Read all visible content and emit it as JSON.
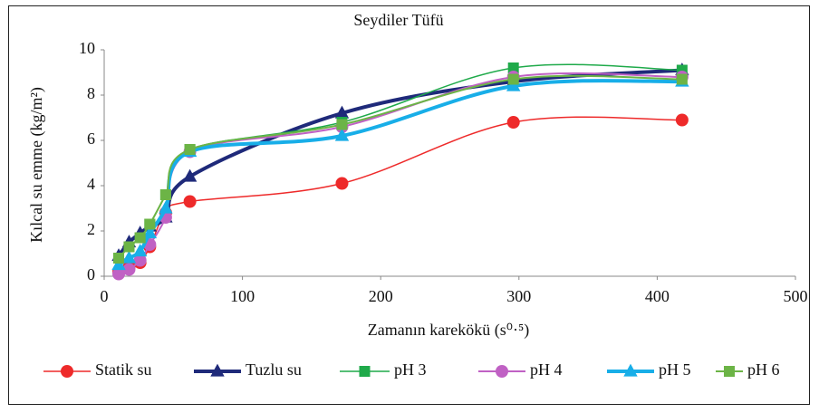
{
  "chart_data": {
    "type": "line",
    "title": "Seydiler Tüfü",
    "xlabel": "Zamanın karekökü (s⁰·⁵)",
    "ylabel": "Kılcal su emme (kg/m²)",
    "x": [
      10.5,
      18,
      26,
      33,
      44.5,
      62,
      172,
      296,
      418
    ],
    "xlim": [
      0,
      500
    ],
    "xticks": [
      0,
      100,
      200,
      300,
      400,
      500
    ],
    "ylim": [
      0,
      10
    ],
    "yticks": [
      0,
      2,
      4,
      6,
      8,
      10
    ],
    "grid": false,
    "legend": "bottom",
    "series": [
      {
        "name": "Statik su",
        "color": "#ee2a2a",
        "marker": "circle",
        "values": [
          0.2,
          0.4,
          0.6,
          1.3,
          2.8,
          3.3,
          4.1,
          6.8,
          6.9
        ]
      },
      {
        "name": "Tuzlu su",
        "color": "#1f2a7a",
        "marker": "triangle",
        "values": [
          0.9,
          1.5,
          1.9,
          2.2,
          2.6,
          4.4,
          7.2,
          8.6,
          9.1
        ]
      },
      {
        "name": "pH 3",
        "color": "#1faa4a",
        "marker": "square",
        "values": [
          0.8,
          1.3,
          1.7,
          2.3,
          3.6,
          5.6,
          6.8,
          9.2,
          9.1
        ]
      },
      {
        "name": "pH 4",
        "color": "#c061c4",
        "marker": "circle",
        "values": [
          0.1,
          0.3,
          0.7,
          1.4,
          2.6,
          5.5,
          6.6,
          8.8,
          8.8
        ]
      },
      {
        "name": "pH 5",
        "color": "#18aee8",
        "marker": "triangle",
        "values": [
          0.5,
          0.8,
          1.1,
          1.9,
          3.0,
          5.5,
          6.2,
          8.4,
          8.6
        ]
      },
      {
        "name": "pH 6",
        "color": "#6cb446",
        "marker": "square",
        "values": [
          0.8,
          1.3,
          1.7,
          2.3,
          3.6,
          5.6,
          6.7,
          8.7,
          8.7
        ]
      }
    ]
  }
}
